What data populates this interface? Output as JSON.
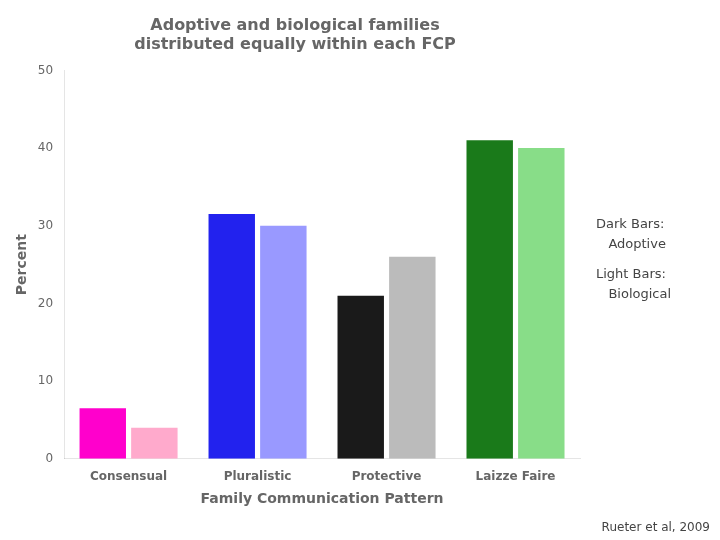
{
  "chart_data": {
    "type": "bar",
    "title": "Adoptive and biological families\ndistributed equally within each FCP",
    "xlabel": "Family Communication Pattern",
    "ylabel": "Percent",
    "categories": [
      "Consensual",
      "Pluralistic",
      "Protective",
      "Laizze Faire"
    ],
    "series": [
      {
        "colors": [
          "#ff00cc",
          "#2222ee",
          "#1a1a1a",
          "#1a7a1a"
        ],
        "values": [
          6.5,
          31.5,
          21,
          41
        ]
      },
      {
        "colors": [
          "#ffaacc",
          "#9999ff",
          "#bbbbbb",
          "#88dd88"
        ],
        "values": [
          4,
          30,
          26,
          40
        ]
      }
    ],
    "ylim": [
      0,
      50
    ],
    "yticks": [
      0,
      10,
      20,
      30,
      40,
      50
    ],
    "grid": false,
    "annotations": [
      "Dark Bars:",
      "   Adoptive",
      "Light Bars:",
      "   Biological"
    ],
    "citation": "Rueter et al, 2009"
  }
}
